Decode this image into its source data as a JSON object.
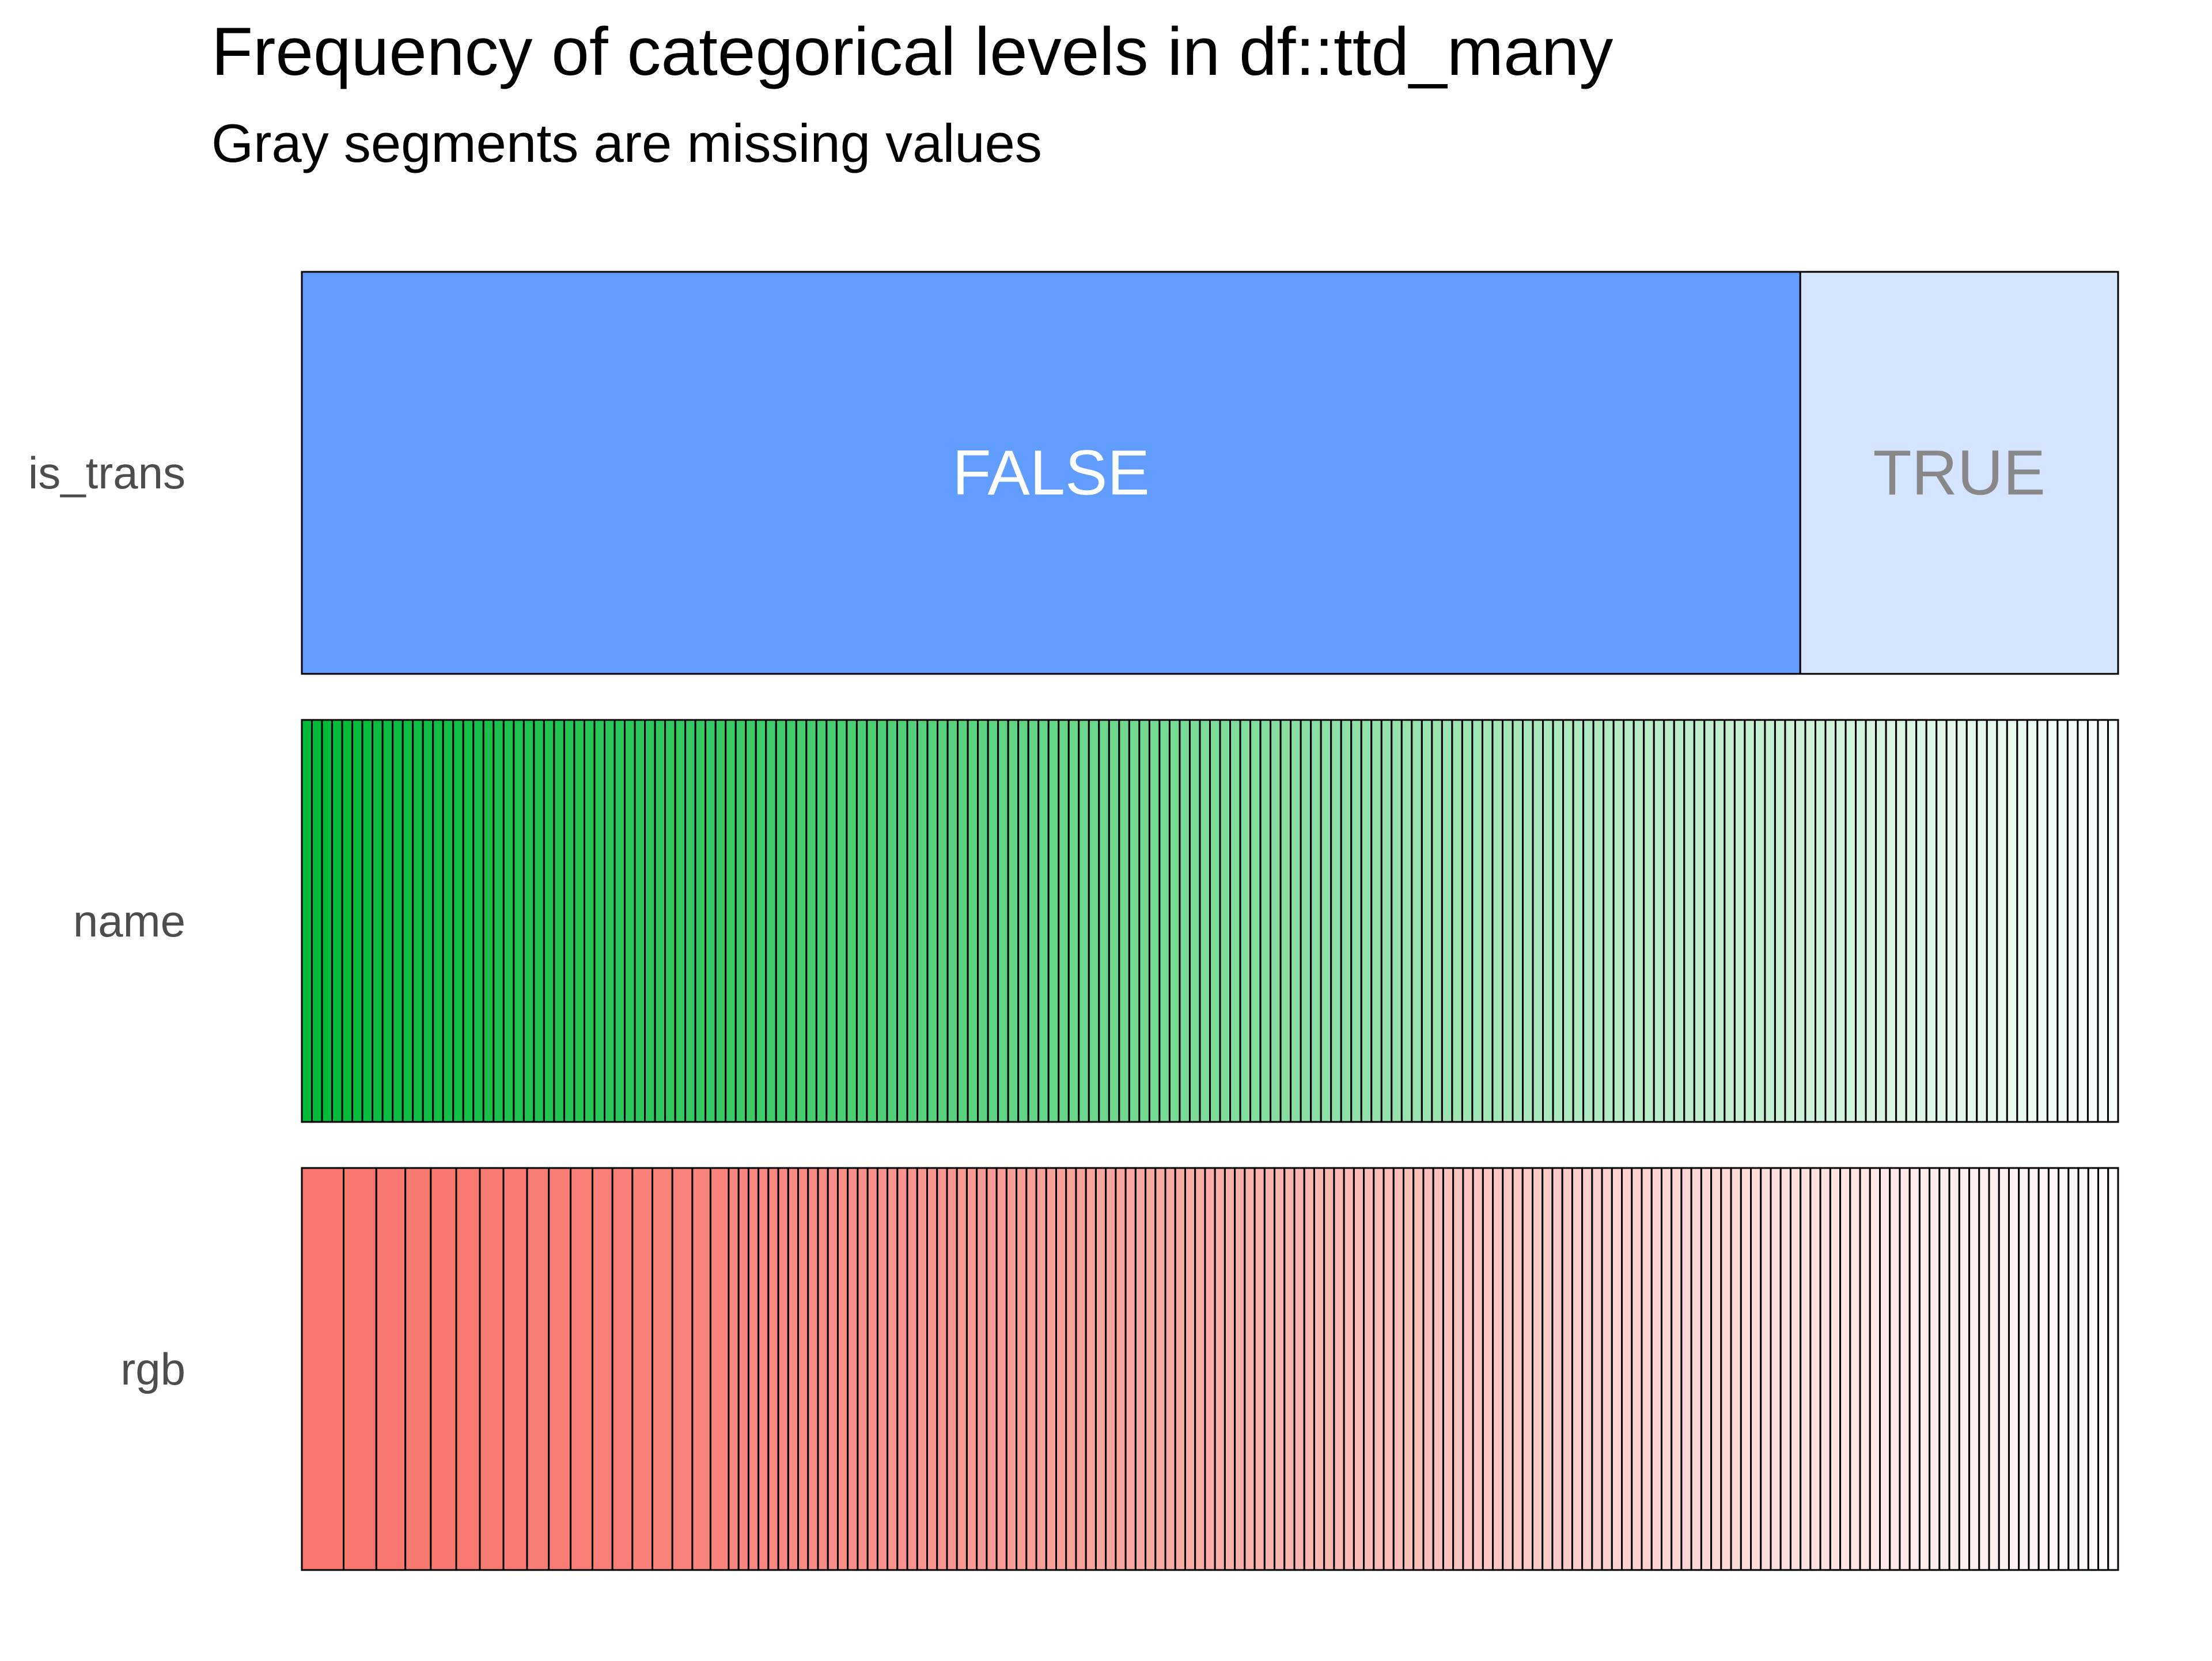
{
  "chart_data": {
    "type": "bar",
    "orientation": "horizontal",
    "stacked": "proportional",
    "title": "Frequency of categorical levels in df::ttd_many",
    "subtitle": "Gray segments are missing values",
    "xlabel": "",
    "ylabel": "",
    "grid": false,
    "legend": "none",
    "colors": {
      "is_trans": "#619cff",
      "name": "#00ba38",
      "rgb": "#f8766d",
      "missing": "#bebebe",
      "outline": "#000000"
    },
    "variables": [
      {
        "name": "is_trans",
        "segment_labels": [
          "FALSE",
          "TRUE"
        ],
        "proportions": [
          0.825,
          0.175
        ]
      },
      {
        "name": "name",
        "approx_levels": 180
      },
      {
        "name": "rgb",
        "proportions_major": [
          0.023,
          0.018,
          0.016,
          0.014,
          0.014,
          0.013,
          0.013,
          0.013,
          0.012,
          0.012,
          0.012,
          0.011,
          0.011,
          0.011,
          0.011,
          0.011,
          0.01,
          0.01
        ],
        "approx_levels_remaining": 140
      }
    ]
  }
}
